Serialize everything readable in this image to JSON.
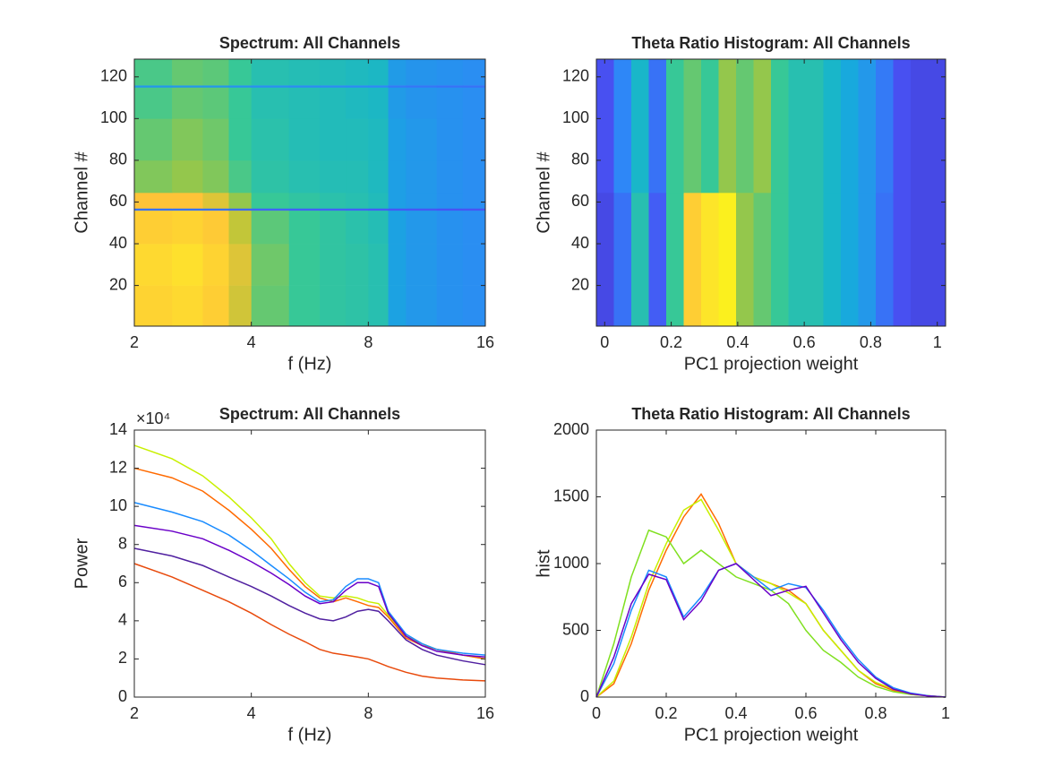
{
  "chart_data": [
    {
      "type": "heatmap",
      "title": "Spectrum: All Channels",
      "xlabel": "f (Hz)",
      "ylabel": "Channel #",
      "xscale": "log",
      "xlim": [
        2,
        16
      ],
      "ylim": [
        0.5,
        128.5
      ],
      "xticks": [
        2,
        4,
        8,
        16
      ],
      "yticks": [
        20,
        40,
        60,
        80,
        100,
        120
      ],
      "colormap": "parula",
      "clim": [
        0,
        1
      ],
      "x_edges": [
        2,
        2.5,
        3,
        3.5,
        4,
        5,
        6,
        7,
        8,
        9,
        10,
        12,
        14,
        16
      ],
      "y_edges": [
        0.5,
        20,
        40,
        56,
        57,
        64.5,
        80,
        100,
        115,
        116,
        128.5
      ],
      "z": [
        [
          0.82,
          0.85,
          0.8,
          0.68,
          0.55,
          0.5,
          0.48,
          0.47,
          0.45,
          0.33,
          0.3,
          0.28,
          0.27
        ],
        [
          0.85,
          0.88,
          0.82,
          0.7,
          0.56,
          0.5,
          0.48,
          0.47,
          0.45,
          0.33,
          0.3,
          0.28,
          0.27
        ],
        [
          0.8,
          0.82,
          0.78,
          0.66,
          0.54,
          0.5,
          0.48,
          0.46,
          0.44,
          0.33,
          0.3,
          0.28,
          0.27
        ],
        [
          0.2,
          0.2,
          0.2,
          0.18,
          0.17,
          0.16,
          0.16,
          0.16,
          0.15,
          0.14,
          0.14,
          0.13,
          0.13
        ],
        [
          0.75,
          0.75,
          0.7,
          0.6,
          0.5,
          0.48,
          0.46,
          0.45,
          0.43,
          0.32,
          0.3,
          0.28,
          0.27
        ],
        [
          0.58,
          0.6,
          0.58,
          0.52,
          0.47,
          0.45,
          0.44,
          0.44,
          0.42,
          0.32,
          0.3,
          0.28,
          0.27
        ],
        [
          0.55,
          0.58,
          0.56,
          0.5,
          0.46,
          0.44,
          0.43,
          0.43,
          0.42,
          0.32,
          0.3,
          0.28,
          0.27
        ],
        [
          0.52,
          0.55,
          0.54,
          0.5,
          0.45,
          0.44,
          0.43,
          0.42,
          0.41,
          0.31,
          0.29,
          0.28,
          0.27
        ],
        [
          0.3,
          0.3,
          0.3,
          0.28,
          0.27,
          0.26,
          0.26,
          0.26,
          0.25,
          0.22,
          0.21,
          0.2,
          0.2
        ],
        [
          0.52,
          0.55,
          0.54,
          0.5,
          0.45,
          0.44,
          0.43,
          0.42,
          0.41,
          0.31,
          0.29,
          0.28,
          0.27
        ]
      ]
    },
    {
      "type": "heatmap",
      "title": "Theta Ratio Histogram: All Channels",
      "xlabel": "PC1 projection weight",
      "ylabel": "Channel #",
      "xlim": [
        -0.025,
        1.025
      ],
      "ylim": [
        0.5,
        128.5
      ],
      "xticks": [
        0,
        0.2,
        0.4,
        0.6,
        0.8,
        1
      ],
      "yticks": [
        20,
        40,
        60,
        80,
        100,
        120
      ],
      "colormap": "parula",
      "clim": [
        0,
        1
      ],
      "x_edges": [
        -0.025,
        0.0275,
        0.08,
        0.1325,
        0.185,
        0.2375,
        0.29,
        0.3425,
        0.395,
        0.4475,
        0.5,
        0.5525,
        0.605,
        0.6575,
        0.71,
        0.7625,
        0.815,
        0.8675,
        0.92,
        0.9725,
        1.025
      ],
      "y_edges": [
        0.5,
        64.5,
        128.5
      ],
      "z": [
        [
          0.1,
          0.2,
          0.45,
          0.15,
          0.5,
          0.8,
          0.9,
          0.95,
          0.6,
          0.55,
          0.5,
          0.45,
          0.45,
          0.4,
          0.35,
          0.3,
          0.2,
          0.12,
          0.1,
          0.1
        ],
        [
          0.12,
          0.25,
          0.4,
          0.2,
          0.5,
          0.55,
          0.5,
          0.6,
          0.55,
          0.6,
          0.5,
          0.45,
          0.45,
          0.4,
          0.35,
          0.3,
          0.22,
          0.12,
          0.1,
          0.1
        ]
      ]
    },
    {
      "type": "line",
      "title": "Spectrum: All Channels",
      "xlabel": "f (Hz)",
      "ylabel": "Power",
      "y_exponent": "×10⁴",
      "xscale": "log",
      "xlim": [
        2,
        16
      ],
      "ylim": [
        0,
        140000
      ],
      "xticks": [
        2,
        4,
        8,
        16
      ],
      "yticks": [
        {
          "value": 0,
          "label": "0"
        },
        {
          "value": 20000,
          "label": "2"
        },
        {
          "value": 40000,
          "label": "4"
        },
        {
          "value": 60000,
          "label": "6"
        },
        {
          "value": 80000,
          "label": "8"
        },
        {
          "value": 100000,
          "label": "10"
        },
        {
          "value": 120000,
          "label": "12"
        },
        {
          "value": 140000,
          "label": "14"
        }
      ],
      "x": [
        2,
        2.5,
        3,
        3.5,
        4,
        4.5,
        5,
        5.5,
        6,
        6.5,
        7,
        7.5,
        8,
        8.5,
        9,
        10,
        11,
        12,
        14,
        16
      ],
      "series": [
        {
          "color": "#c8f000",
          "values": [
            132000,
            125000,
            116000,
            105000,
            94000,
            83000,
            70000,
            60000,
            53000,
            52000,
            53000,
            52000,
            50000,
            49000,
            43000,
            32000,
            28000,
            25000,
            22000,
            20000
          ]
        },
        {
          "color": "#ff6a00",
          "values": [
            120000,
            115000,
            108000,
            98000,
            88000,
            78000,
            67000,
            58000,
            52000,
            50000,
            52000,
            50000,
            48000,
            47000,
            42000,
            31000,
            27000,
            25000,
            22000,
            20000
          ]
        },
        {
          "color": "#1a8cff",
          "values": [
            102000,
            97000,
            92000,
            85000,
            77000,
            69000,
            62000,
            55000,
            50000,
            51000,
            58000,
            62000,
            62000,
            60000,
            45000,
            33000,
            28000,
            25000,
            23000,
            22000
          ]
        },
        {
          "color": "#6a00c8",
          "values": [
            90000,
            87000,
            83000,
            77000,
            71000,
            65000,
            59000,
            53000,
            49000,
            50000,
            56000,
            60000,
            60000,
            58000,
            44000,
            32000,
            27000,
            24000,
            22000,
            21000
          ]
        },
        {
          "color": "#5020a0",
          "values": [
            78000,
            74000,
            69000,
            63000,
            58000,
            53000,
            48000,
            44000,
            41000,
            40000,
            42000,
            45000,
            46000,
            45000,
            40000,
            30000,
            25000,
            22000,
            19000,
            17000
          ]
        },
        {
          "color": "#e84a0c",
          "values": [
            70000,
            63000,
            56000,
            50000,
            44000,
            38000,
            33000,
            29000,
            25000,
            23000,
            22000,
            21000,
            20000,
            18000,
            16000,
            13000,
            11000,
            10000,
            9000,
            8500
          ]
        }
      ]
    },
    {
      "type": "line",
      "title": "Theta Ratio Histogram: All Channels",
      "xlabel": "PC1 projection weight",
      "ylabel": "hist",
      "xlim": [
        0,
        1
      ],
      "ylim": [
        0,
        2000
      ],
      "xticks": [
        0,
        0.2,
        0.4,
        0.6,
        0.8,
        1
      ],
      "yticks": [
        0,
        500,
        1000,
        1500,
        2000
      ],
      "x": [
        0,
        0.05,
        0.1,
        0.15,
        0.2,
        0.25,
        0.3,
        0.35,
        0.4,
        0.45,
        0.5,
        0.55,
        0.6,
        0.65,
        0.7,
        0.75,
        0.8,
        0.85,
        0.9,
        0.95,
        1
      ],
      "series": [
        {
          "color": "#ff6a00",
          "values": [
            0,
            100,
            400,
            800,
            1100,
            1350,
            1520,
            1300,
            1000,
            900,
            850,
            800,
            700,
            500,
            350,
            200,
            100,
            50,
            20,
            10,
            0
          ]
        },
        {
          "color": "#c8f000",
          "values": [
            0,
            120,
            450,
            850,
            1150,
            1400,
            1480,
            1250,
            1000,
            900,
            850,
            780,
            700,
            500,
            350,
            200,
            110,
            60,
            25,
            10,
            0
          ]
        },
        {
          "color": "#80e020",
          "values": [
            0,
            400,
            900,
            1250,
            1200,
            1000,
            1100,
            1000,
            900,
            850,
            800,
            700,
            500,
            350,
            260,
            150,
            80,
            40,
            20,
            10,
            0
          ]
        },
        {
          "color": "#1a8cff",
          "values": [
            0,
            250,
            650,
            950,
            900,
            600,
            750,
            950,
            1000,
            900,
            800,
            850,
            820,
            650,
            450,
            280,
            150,
            70,
            30,
            10,
            0
          ]
        },
        {
          "color": "#6a00c8",
          "values": [
            0,
            300,
            700,
            920,
            880,
            580,
            720,
            950,
            1000,
            880,
            760,
            800,
            830,
            630,
            430,
            260,
            140,
            60,
            25,
            8,
            0
          ]
        }
      ]
    }
  ]
}
